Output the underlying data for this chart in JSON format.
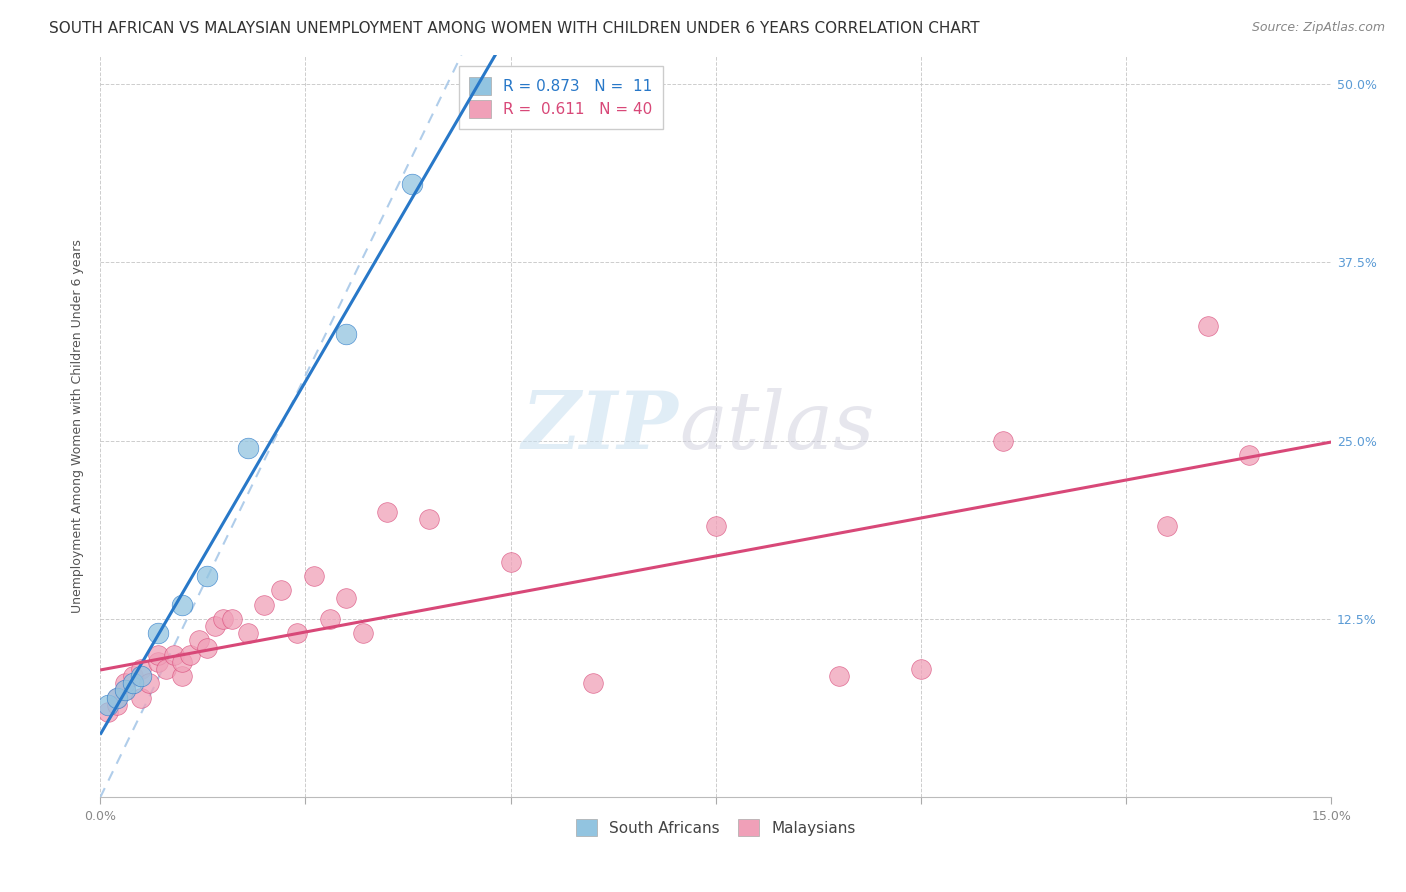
{
  "title": "SOUTH AFRICAN VS MALAYSIAN UNEMPLOYMENT AMONG WOMEN WITH CHILDREN UNDER 6 YEARS CORRELATION CHART",
  "source": "Source: ZipAtlas.com",
  "ylabel": "Unemployment Among Women with Children Under 6 years",
  "xlim": [
    0.0,
    0.15
  ],
  "ylim": [
    0.0,
    0.52
  ],
  "yticks": [
    0.0,
    0.125,
    0.25,
    0.375,
    0.5
  ],
  "ytick_labels": [
    "",
    "12.5%",
    "25.0%",
    "37.5%",
    "50.0%"
  ],
  "xticks": [
    0.0,
    0.025,
    0.05,
    0.075,
    0.1,
    0.125,
    0.15
  ],
  "xtick_labels": [
    "0.0%",
    "",
    "",
    "",
    "",
    "",
    "15.0%"
  ],
  "r_sa": 0.873,
  "n_sa": 11,
  "r_my": 0.611,
  "n_my": 40,
  "sa_color": "#92c4e0",
  "sa_line_color": "#2878c8",
  "my_color": "#f0a0b8",
  "my_line_color": "#d84878",
  "ref_line_color": "#a8c8e8",
  "sa_points_x": [
    0.001,
    0.002,
    0.003,
    0.004,
    0.005,
    0.007,
    0.01,
    0.013,
    0.018,
    0.03,
    0.038
  ],
  "sa_points_y": [
    0.065,
    0.07,
    0.075,
    0.08,
    0.085,
    0.115,
    0.135,
    0.155,
    0.245,
    0.325,
    0.43
  ],
  "my_points_x": [
    0.001,
    0.002,
    0.002,
    0.003,
    0.003,
    0.004,
    0.005,
    0.005,
    0.006,
    0.007,
    0.007,
    0.008,
    0.009,
    0.01,
    0.01,
    0.011,
    0.012,
    0.013,
    0.014,
    0.015,
    0.016,
    0.018,
    0.02,
    0.022,
    0.024,
    0.026,
    0.028,
    0.03,
    0.032,
    0.035,
    0.04,
    0.05,
    0.06,
    0.075,
    0.09,
    0.1,
    0.11,
    0.13,
    0.135,
    0.14
  ],
  "my_points_y": [
    0.06,
    0.065,
    0.07,
    0.075,
    0.08,
    0.085,
    0.07,
    0.09,
    0.08,
    0.095,
    0.1,
    0.09,
    0.1,
    0.085,
    0.095,
    0.1,
    0.11,
    0.105,
    0.12,
    0.125,
    0.125,
    0.115,
    0.135,
    0.145,
    0.115,
    0.155,
    0.125,
    0.14,
    0.115,
    0.2,
    0.195,
    0.165,
    0.08,
    0.19,
    0.085,
    0.09,
    0.25,
    0.19,
    0.33,
    0.24
  ],
  "watermark_zip": "ZIP",
  "watermark_atlas": "atlas",
  "title_fontsize": 11,
  "source_fontsize": 9,
  "label_fontsize": 9,
  "tick_fontsize": 9,
  "legend_fontsize": 11
}
